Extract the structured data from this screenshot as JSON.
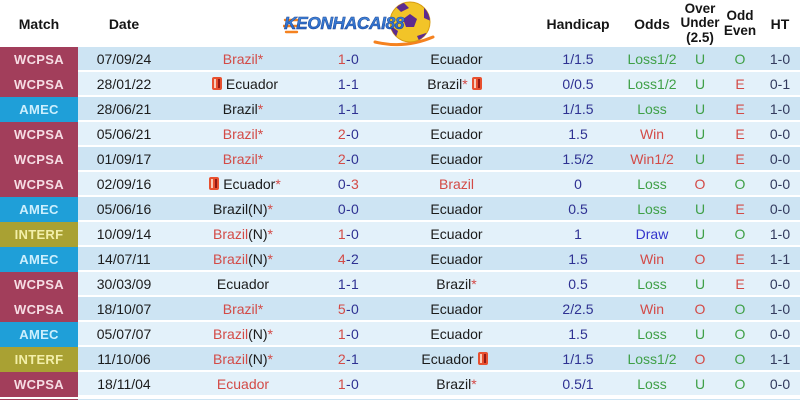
{
  "logo": {
    "text": "KEONHACAI88",
    "text_color": "#2f6fd6",
    "ball_color": "#f2c428",
    "pentagon_color": "#5d2b8f",
    "trail_color": "#f58220"
  },
  "header": {
    "match": "Match",
    "date": "Date",
    "handicap": "Handicap",
    "odds": "Odds",
    "over_under_lines": [
      "Over",
      "Under",
      "(2.5)"
    ],
    "odd_even_lines": [
      "Odd",
      "Even"
    ],
    "ht": "HT"
  },
  "colors": {
    "wcpsa_bg": "#a23e5b",
    "amec_bg": "#1f9fd8",
    "interf_bg": "#a9a133",
    "row_odd": "#cde4f3",
    "row_even": "#e3f1fa",
    "win_red": "#d34a46",
    "loss_green": "#3fa047",
    "draw_blue": "#3333cc",
    "score_navy": "#2e3192"
  },
  "rows": [
    {
      "comp": "WCPSA",
      "comp_style": "wcpsa",
      "home": [
        {
          "t": "Brazil*",
          "c": "red"
        }
      ],
      "score": [
        {
          "t": "1",
          "c": "red"
        },
        {
          "t": "-",
          "c": "navy"
        },
        {
          "t": "0",
          "c": "navy"
        }
      ],
      "away": [
        {
          "t": "Ecuador",
          "c": "dark"
        }
      ],
      "date": "07/09/24",
      "handicap": "1/1.5",
      "odds": {
        "t": "Loss1/2",
        "c": "green"
      },
      "ou": {
        "t": "U",
        "c": "green"
      },
      "oe": {
        "t": "O",
        "c": "green"
      },
      "ht": "1-0"
    },
    {
      "comp": "WCPSA",
      "comp_style": "wcpsa",
      "home": [
        {
          "icon": "red-card"
        },
        {
          "t": "Ecuador",
          "c": "dark"
        }
      ],
      "score": [
        {
          "t": "1",
          "c": "navy"
        },
        {
          "t": "-",
          "c": "navy"
        },
        {
          "t": "1",
          "c": "navy"
        }
      ],
      "away": [
        {
          "t": "Brazil",
          "c": "dark"
        },
        {
          "t": "*",
          "c": "red"
        },
        {
          "icon": "red-card"
        }
      ],
      "date": "28/01/22",
      "handicap": "0/0.5",
      "odds": {
        "t": "Loss1/2",
        "c": "green"
      },
      "ou": {
        "t": "U",
        "c": "green"
      },
      "oe": {
        "t": "E",
        "c": "red"
      },
      "ht": "0-1"
    },
    {
      "comp": "AMEC",
      "comp_style": "amec",
      "home": [
        {
          "t": "Brazil",
          "c": "dark"
        },
        {
          "t": "*",
          "c": "red"
        }
      ],
      "score": [
        {
          "t": "1",
          "c": "navy"
        },
        {
          "t": "-",
          "c": "navy"
        },
        {
          "t": "1",
          "c": "navy"
        }
      ],
      "away": [
        {
          "t": "Ecuador",
          "c": "dark"
        }
      ],
      "date": "28/06/21",
      "handicap": "1/1.5",
      "odds": {
        "t": "Loss",
        "c": "green"
      },
      "ou": {
        "t": "U",
        "c": "green"
      },
      "oe": {
        "t": "E",
        "c": "red"
      },
      "ht": "1-0"
    },
    {
      "comp": "WCPSA",
      "comp_style": "wcpsa",
      "home": [
        {
          "t": "Brazil*",
          "c": "red"
        }
      ],
      "score": [
        {
          "t": "2",
          "c": "red"
        },
        {
          "t": "-",
          "c": "navy"
        },
        {
          "t": "0",
          "c": "navy"
        }
      ],
      "away": [
        {
          "t": "Ecuador",
          "c": "dark"
        }
      ],
      "date": "05/06/21",
      "handicap": "1.5",
      "odds": {
        "t": "Win",
        "c": "red"
      },
      "ou": {
        "t": "U",
        "c": "green"
      },
      "oe": {
        "t": "E",
        "c": "red"
      },
      "ht": "0-0"
    },
    {
      "comp": "WCPSA",
      "comp_style": "wcpsa",
      "home": [
        {
          "t": "Brazil*",
          "c": "red"
        }
      ],
      "score": [
        {
          "t": "2",
          "c": "red"
        },
        {
          "t": "-",
          "c": "navy"
        },
        {
          "t": "0",
          "c": "navy"
        }
      ],
      "away": [
        {
          "t": "Ecuador",
          "c": "dark"
        }
      ],
      "date": "01/09/17",
      "handicap": "1.5/2",
      "odds": {
        "t": "Win1/2",
        "c": "red"
      },
      "ou": {
        "t": "U",
        "c": "green"
      },
      "oe": {
        "t": "E",
        "c": "red"
      },
      "ht": "0-0"
    },
    {
      "comp": "WCPSA",
      "comp_style": "wcpsa",
      "home": [
        {
          "icon": "red-card"
        },
        {
          "t": "Ecuador",
          "c": "dark"
        },
        {
          "t": "*",
          "c": "red"
        }
      ],
      "score": [
        {
          "t": "0",
          "c": "navy"
        },
        {
          "t": "-",
          "c": "navy"
        },
        {
          "t": "3",
          "c": "red"
        }
      ],
      "away": [
        {
          "t": "Brazil",
          "c": "red"
        }
      ],
      "date": "02/09/16",
      "handicap": "0",
      "odds": {
        "t": "Loss",
        "c": "green"
      },
      "ou": {
        "t": "O",
        "c": "red"
      },
      "oe": {
        "t": "O",
        "c": "green"
      },
      "ht": "0-0"
    },
    {
      "comp": "AMEC",
      "comp_style": "amec",
      "home": [
        {
          "t": "Brazil(N)",
          "c": "dark"
        },
        {
          "t": "*",
          "c": "red"
        }
      ],
      "score": [
        {
          "t": "0",
          "c": "navy"
        },
        {
          "t": "-",
          "c": "navy"
        },
        {
          "t": "0",
          "c": "navy"
        }
      ],
      "away": [
        {
          "t": "Ecuador",
          "c": "dark"
        }
      ],
      "date": "05/06/16",
      "handicap": "0.5",
      "odds": {
        "t": "Loss",
        "c": "green"
      },
      "ou": {
        "t": "U",
        "c": "green"
      },
      "oe": {
        "t": "E",
        "c": "red"
      },
      "ht": "0-0"
    },
    {
      "comp": "INTERF",
      "comp_style": "interf",
      "home": [
        {
          "t": "Brazil",
          "c": "red"
        },
        {
          "t": "(N)",
          "c": "dark"
        },
        {
          "t": "*",
          "c": "red"
        }
      ],
      "score": [
        {
          "t": "1",
          "c": "red"
        },
        {
          "t": "-",
          "c": "navy"
        },
        {
          "t": "0",
          "c": "navy"
        }
      ],
      "away": [
        {
          "t": "Ecuador",
          "c": "dark"
        }
      ],
      "date": "10/09/14",
      "handicap": "1",
      "odds": {
        "t": "Draw",
        "c": "blue"
      },
      "ou": {
        "t": "U",
        "c": "green"
      },
      "oe": {
        "t": "O",
        "c": "green"
      },
      "ht": "1-0"
    },
    {
      "comp": "AMEC",
      "comp_style": "amec",
      "home": [
        {
          "t": "Brazil",
          "c": "red"
        },
        {
          "t": "(N)",
          "c": "dark"
        },
        {
          "t": "*",
          "c": "red"
        }
      ],
      "score": [
        {
          "t": "4",
          "c": "red"
        },
        {
          "t": "-",
          "c": "navy"
        },
        {
          "t": "2",
          "c": "navy"
        }
      ],
      "away": [
        {
          "t": "Ecuador",
          "c": "dark"
        }
      ],
      "date": "14/07/11",
      "handicap": "1.5",
      "odds": {
        "t": "Win",
        "c": "red"
      },
      "ou": {
        "t": "O",
        "c": "red"
      },
      "oe": {
        "t": "E",
        "c": "red"
      },
      "ht": "1-1"
    },
    {
      "comp": "WCPSA",
      "comp_style": "wcpsa",
      "home": [
        {
          "t": "Ecuador",
          "c": "dark"
        }
      ],
      "score": [
        {
          "t": "1",
          "c": "navy"
        },
        {
          "t": "-",
          "c": "navy"
        },
        {
          "t": "1",
          "c": "navy"
        }
      ],
      "away": [
        {
          "t": "Brazil",
          "c": "dark"
        },
        {
          "t": "*",
          "c": "red"
        }
      ],
      "date": "30/03/09",
      "handicap": "0.5",
      "odds": {
        "t": "Loss",
        "c": "green"
      },
      "ou": {
        "t": "U",
        "c": "green"
      },
      "oe": {
        "t": "E",
        "c": "red"
      },
      "ht": "0-0"
    },
    {
      "comp": "WCPSA",
      "comp_style": "wcpsa",
      "home": [
        {
          "t": "Brazil*",
          "c": "red"
        }
      ],
      "score": [
        {
          "t": "5",
          "c": "red"
        },
        {
          "t": "-",
          "c": "navy"
        },
        {
          "t": "0",
          "c": "navy"
        }
      ],
      "away": [
        {
          "t": "Ecuador",
          "c": "dark"
        }
      ],
      "date": "18/10/07",
      "handicap": "2/2.5",
      "odds": {
        "t": "Win",
        "c": "red"
      },
      "ou": {
        "t": "O",
        "c": "red"
      },
      "oe": {
        "t": "O",
        "c": "green"
      },
      "ht": "1-0"
    },
    {
      "comp": "AMEC",
      "comp_style": "amec",
      "home": [
        {
          "t": "Brazil",
          "c": "red"
        },
        {
          "t": "(N)",
          "c": "dark"
        },
        {
          "t": "*",
          "c": "red"
        }
      ],
      "score": [
        {
          "t": "1",
          "c": "red"
        },
        {
          "t": "-",
          "c": "navy"
        },
        {
          "t": "0",
          "c": "navy"
        }
      ],
      "away": [
        {
          "t": "Ecuador",
          "c": "dark"
        }
      ],
      "date": "05/07/07",
      "handicap": "1.5",
      "odds": {
        "t": "Loss",
        "c": "green"
      },
      "ou": {
        "t": "U",
        "c": "green"
      },
      "oe": {
        "t": "O",
        "c": "green"
      },
      "ht": "0-0"
    },
    {
      "comp": "INTERF",
      "comp_style": "interf",
      "home": [
        {
          "t": "Brazil",
          "c": "red"
        },
        {
          "t": "(N)",
          "c": "dark"
        },
        {
          "t": "*",
          "c": "red"
        }
      ],
      "score": [
        {
          "t": "2",
          "c": "red"
        },
        {
          "t": "-",
          "c": "navy"
        },
        {
          "t": "1",
          "c": "navy"
        }
      ],
      "away": [
        {
          "t": "Ecuador",
          "c": "dark"
        },
        {
          "icon": "red-card"
        }
      ],
      "date": "11/10/06",
      "handicap": "1/1.5",
      "odds": {
        "t": "Loss1/2",
        "c": "green"
      },
      "ou": {
        "t": "O",
        "c": "red"
      },
      "oe": {
        "t": "O",
        "c": "green"
      },
      "ht": "1-1"
    },
    {
      "comp": "WCPSA",
      "comp_style": "wcpsa",
      "home": [
        {
          "t": "Ecuador",
          "c": "red"
        }
      ],
      "score": [
        {
          "t": "1",
          "c": "red"
        },
        {
          "t": "-",
          "c": "navy"
        },
        {
          "t": "0",
          "c": "navy"
        }
      ],
      "away": [
        {
          "t": "Brazil",
          "c": "dark"
        },
        {
          "t": "*",
          "c": "red"
        }
      ],
      "date": "18/11/04",
      "handicap": "0.5/1",
      "odds": {
        "t": "Loss",
        "c": "green"
      },
      "ou": {
        "t": "U",
        "c": "green"
      },
      "oe": {
        "t": "O",
        "c": "green"
      },
      "ht": "0-0"
    }
  ],
  "partial_row": {
    "comp_style": "wcpsa",
    "band": "odd"
  }
}
